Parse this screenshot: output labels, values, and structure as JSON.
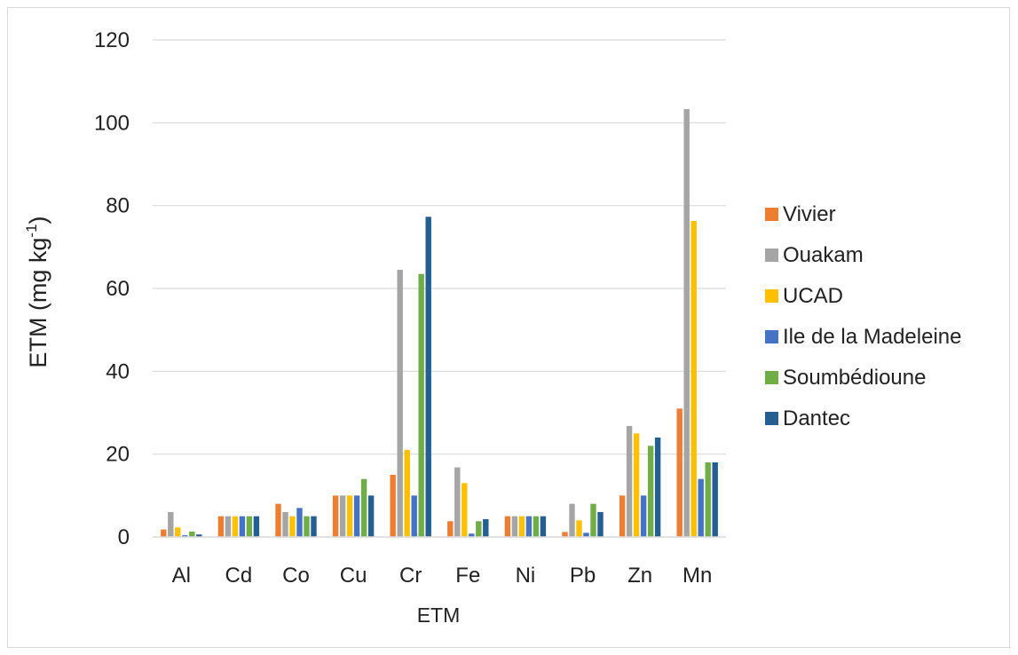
{
  "chart_data": {
    "type": "bar",
    "title": "",
    "xlabel": "ETM",
    "ylabel": "ETM (mg kg",
    "ylabel_superscript": "-1",
    "ylabel_close": ")",
    "ylim": [
      0,
      120
    ],
    "yticks": [
      0,
      20,
      40,
      60,
      80,
      100,
      120
    ],
    "grid": true,
    "legend": "right",
    "categories": [
      "Al",
      "Cd",
      "Co",
      "Cu",
      "Cr",
      "Fe",
      "Ni",
      "Pb",
      "Zn",
      "Mn"
    ],
    "series": [
      {
        "name": "Vivier",
        "color": "#ED7D31",
        "values": [
          1.8,
          5,
          8,
          10,
          15,
          3.8,
          5,
          1.2,
          10,
          31
        ]
      },
      {
        "name": "Ouakam",
        "color": "#A5A5A5",
        "values": [
          6,
          5,
          6,
          10,
          64.5,
          16.8,
          5,
          8,
          26.8,
          103.3
        ]
      },
      {
        "name": "UCAD",
        "color": "#FFC000",
        "values": [
          2.3,
          5,
          5,
          10,
          21,
          13,
          5,
          4,
          25,
          76.3
        ]
      },
      {
        "name": "Ile de la Madeleine",
        "color": "#4472C4",
        "values": [
          0.4,
          5,
          7,
          10,
          10,
          0.8,
          5,
          1,
          10,
          14
        ]
      },
      {
        "name": "Soumbédioune",
        "color": "#70AD47",
        "values": [
          1.3,
          5,
          5,
          14,
          63.5,
          3.8,
          5,
          8,
          22,
          18
        ]
      },
      {
        "name": "Dantec",
        "color": "#255E91",
        "values": [
          0.6,
          5,
          5,
          10,
          77.3,
          4.3,
          5,
          6,
          24,
          18
        ]
      }
    ]
  }
}
